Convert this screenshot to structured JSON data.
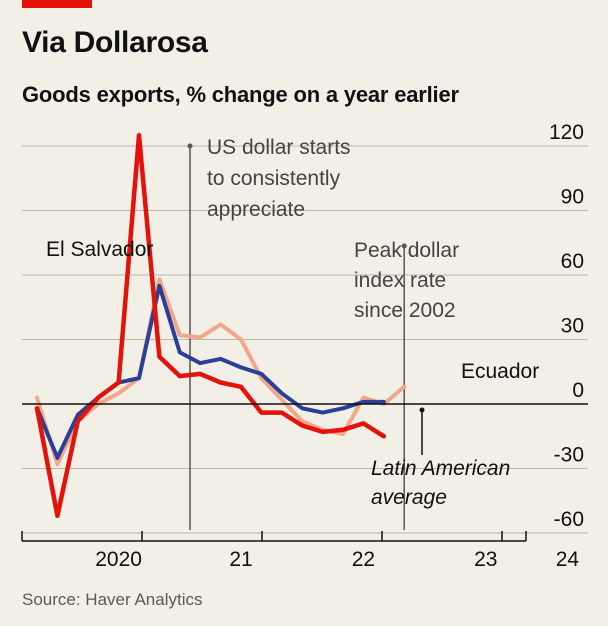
{
  "header": {
    "title": "Via Dollarosa",
    "subtitle": "Goods exports, % change on a year earlier"
  },
  "footer": {
    "source": "Source: Haver Analytics"
  },
  "colors": {
    "background": "#f1efe6",
    "el_salvador": "#e3120b",
    "latin_america": "#2a3f97",
    "ecuador": "#f2a68a",
    "gridline": "#b8b6ae",
    "annotation_line": "#555555",
    "brand_tag": "#e3120b"
  },
  "chart_data": {
    "type": "line",
    "title": "Goods exports, % change on a year earlier",
    "xlabel": "",
    "ylabel": "",
    "x": [
      "2019-10",
      "2019-12",
      "2020-02",
      "2020-04",
      "2020-06",
      "2020-08",
      "2020-10",
      "2020-12",
      "2021-02",
      "2021-04",
      "2021-06",
      "2021-08",
      "2021-10",
      "2021-12",
      "2022-02",
      "2022-04",
      "2022-06",
      "2022-08",
      "2022-10",
      "2022-12",
      "2023-02",
      "2023-04",
      "2023-06",
      "2023-08",
      "2023-10",
      "2023-12",
      "2024-02",
      "2024-04"
    ],
    "ylim": [
      -60,
      120
    ],
    "yticks": [
      -60,
      -30,
      0,
      30,
      60,
      90,
      120
    ],
    "y_axis_position": "right",
    "xticks": [
      {
        "label": "2020",
        "x": "2020-06"
      },
      {
        "label": "21",
        "x": "2021-06"
      },
      {
        "label": "22",
        "x": "2022-06"
      },
      {
        "label": "23",
        "x": "2023-06"
      },
      {
        "label": "24",
        "x": "2024-02"
      }
    ],
    "series": [
      {
        "name": "Ecuador",
        "color": "#f2a68a",
        "values": [
          3,
          -28,
          -8,
          0,
          5,
          12,
          58,
          32,
          31,
          37,
          30,
          12,
          2,
          -8,
          -12,
          -14,
          3,
          0,
          8,
          null,
          null,
          null,
          null,
          null,
          null,
          null,
          null,
          null
        ]
      },
      {
        "name": "Latin American average",
        "color": "#2a3f97",
        "values": [
          -2,
          -25,
          -5,
          3,
          10,
          12,
          55,
          24,
          19,
          21,
          17,
          14,
          5,
          -2,
          -4,
          -2,
          1,
          1,
          null,
          null,
          null,
          null,
          null,
          null,
          null,
          null,
          null,
          null
        ]
      },
      {
        "name": "El Salvador",
        "color": "#e3120b",
        "values": [
          -2,
          -52,
          -8,
          3,
          10,
          125,
          22,
          13,
          14,
          10,
          8,
          -4,
          -4,
          -10,
          -13,
          -12,
          -9,
          -15,
          null,
          null,
          null,
          null,
          null,
          null,
          null,
          null,
          null,
          null
        ]
      }
    ],
    "annotations": [
      {
        "text_lines": [
          "US dollar starts",
          "to consistently",
          "appreciate"
        ],
        "x": "2021-01"
      },
      {
        "text_lines": [
          "Peak dollar",
          "index rate",
          "since 2002"
        ],
        "x": "2022-10"
      }
    ],
    "series_labels": {
      "el_salvador": "El Salvador",
      "ecuador": "Ecuador",
      "latin_america_lines": [
        "Latin American",
        "average"
      ]
    },
    "grid": true
  }
}
